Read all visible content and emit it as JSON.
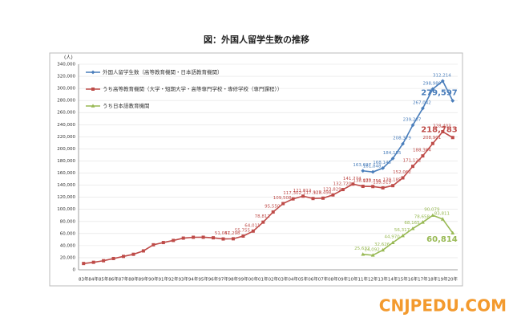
{
  "chart_data": {
    "type": "line",
    "title": "図：外国人留学生数の推移",
    "y_unit": "(人)",
    "watermark": "CNJPEDU.COM",
    "categories": [
      "83年",
      "84年",
      "85年",
      "86年",
      "87年",
      "88年",
      "89年",
      "90年",
      "91年",
      "92年",
      "93年",
      "94年",
      "95年",
      "96年",
      "97年",
      "98年",
      "99年",
      "00年",
      "01年",
      "02年",
      "03年",
      "04年",
      "05年",
      "06年",
      "07年",
      "08年",
      "09年",
      "10年",
      "11年",
      "12年",
      "13年",
      "14年",
      "15年",
      "16年",
      "17年",
      "18年",
      "19年",
      "20年"
    ],
    "ylim": [
      0,
      340000
    ],
    "yticks": [
      0,
      {
        "value": 20000,
        "label": "20,000"
      },
      {
        "value": 40000,
        "label": "40,000"
      },
      {
        "value": 60000,
        "label": "60,000"
      },
      {
        "value": 80000,
        "label": "80,000"
      },
      {
        "value": 100000,
        "label": "100,000"
      },
      {
        "value": 120000,
        "label": "120,000"
      },
      {
        "value": 140000,
        "label": "140,000"
      },
      {
        "value": 160000,
        "label": "160,000"
      },
      {
        "value": 180000,
        "label": "180,000"
      },
      {
        "value": 200000,
        "label": "200,000"
      },
      {
        "value": 220000,
        "label": "220,000"
      },
      {
        "value": 240000,
        "label": "240,000"
      },
      {
        "value": 260000,
        "label": "260,000"
      },
      {
        "value": 280000,
        "label": "280,000"
      },
      {
        "value": 300000,
        "label": "300,000"
      },
      {
        "value": 320000,
        "label": "320,000"
      },
      {
        "value": 340000,
        "label": "340,000"
      }
    ],
    "grid": true,
    "legend": "top-left",
    "series": [
      {
        "name": "外国人留学生数（高等教育機関・日本語教育機関）",
        "color": "#4a7ebb",
        "marker": "diamond",
        "values": [
          null,
          null,
          null,
          null,
          null,
          null,
          null,
          null,
          null,
          null,
          null,
          null,
          null,
          null,
          null,
          null,
          null,
          null,
          null,
          null,
          null,
          null,
          null,
          null,
          null,
          null,
          null,
          null,
          163697,
          161848,
          168145,
          184155,
          208379,
          239287,
          267042,
          298980,
          312214,
          279597
        ],
        "value_labels": [
          null,
          null,
          null,
          null,
          null,
          null,
          null,
          null,
          null,
          null,
          null,
          null,
          null,
          null,
          null,
          null,
          null,
          null,
          null,
          null,
          null,
          null,
          null,
          null,
          null,
          null,
          null,
          null,
          "163,697",
          "161,848",
          "168,145",
          "184,155",
          "208,379",
          "239,287",
          "267,042",
          "298,980",
          "312,214",
          "279,597"
        ]
      },
      {
        "name": "うち高等教育機関（大学・短期大学・高等専門学校・専修学校（専門課程））",
        "color": "#be4b48",
        "marker": "square",
        "values": [
          10428,
          12410,
          15009,
          18631,
          22154,
          25643,
          31251,
          41347,
          45066,
          48561,
          52405,
          53787,
          53847,
          52921,
          51047,
          51298,
          55755,
          64011,
          78812,
          95550,
          109508,
          117302,
          121812,
          117927,
          118498,
          123829,
          132720,
          141774,
          138075,
          137756,
          135519,
          139185,
          152062,
          171122,
          188384,
          208901,
          228403,
          218783
        ],
        "value_labels": [
          null,
          null,
          null,
          null,
          null,
          null,
          null,
          null,
          null,
          null,
          null,
          null,
          null,
          null,
          "51,047",
          "51,298",
          "55,755",
          "64,011",
          "78,812",
          "95,550",
          "109,508",
          "117,302",
          "121,812",
          "117,927",
          "118,498",
          "123,829",
          "132,720",
          "141,774",
          "138,075",
          "137,756",
          "135,519",
          "139,185",
          "152,062",
          "171,122",
          "188,384",
          "208,901",
          "228,403",
          "218,783"
        ]
      },
      {
        "name": "うち日本語教育機関",
        "color": "#98b954",
        "marker": "triangle",
        "values": [
          null,
          null,
          null,
          null,
          null,
          null,
          null,
          null,
          null,
          null,
          null,
          null,
          null,
          null,
          null,
          null,
          null,
          null,
          null,
          null,
          null,
          null,
          null,
          null,
          null,
          null,
          null,
          null,
          25622,
          24092,
          32626,
          44970,
          56317,
          68165,
          78658,
          90079,
          83811,
          60814
        ],
        "value_labels": [
          null,
          null,
          null,
          null,
          null,
          null,
          null,
          null,
          null,
          null,
          null,
          null,
          null,
          null,
          null,
          null,
          null,
          null,
          null,
          null,
          null,
          null,
          null,
          null,
          null,
          null,
          null,
          null,
          "25,622",
          "24,092",
          "32,626",
          "44,970",
          "56,317",
          "68,165",
          "78,658",
          "90,079",
          "83,811",
          "60,814"
        ]
      }
    ]
  }
}
